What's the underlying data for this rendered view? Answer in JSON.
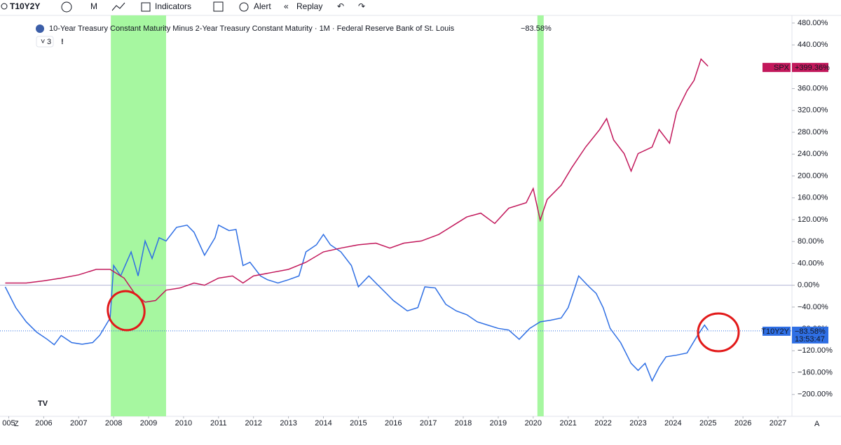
{
  "toolbar": {
    "symbol": "T10Y2Y",
    "interval": "M",
    "indicators": "Indicators",
    "alert": "Alert",
    "replay": "Replay"
  },
  "chart_data": {
    "type": "line",
    "title": "10-Year Treasury Constant Maturity Minus 2-Year Treasury Constant Maturity · 1M · Federal Reserve Bank of St. Louis",
    "title_value": "−83.58%",
    "indicator_count": "3",
    "xlim": [
      2004.75,
      2027.4
    ],
    "xticks": [
      {
        "value": 2005,
        "label": "005"
      },
      2006,
      2007,
      2008,
      2009,
      2010,
      2011,
      2012,
      2013,
      2014,
      2015,
      2016,
      2017,
      2018,
      2019,
      2020,
      2021,
      2022,
      2023,
      2024,
      2025,
      2026,
      2027
    ],
    "ylim": [
      -240,
      494
    ],
    "yticks": [
      {
        "value": 480,
        "label": "480.00%"
      },
      {
        "value": 440,
        "label": "440.00%"
      },
      {
        "value": 400,
        "label": "400.00%"
      },
      {
        "value": 360,
        "label": "360.00%"
      },
      {
        "value": 320,
        "label": "320.00%"
      },
      {
        "value": 280,
        "label": "280.00%"
      },
      {
        "value": 240,
        "label": "240.00%"
      },
      {
        "value": 200,
        "label": "200.00%"
      },
      {
        "value": 160,
        "label": "160.00%"
      },
      {
        "value": 120,
        "label": "120.00%"
      },
      {
        "value": 80,
        "label": "80.00%"
      },
      {
        "value": 40,
        "label": "40.00%"
      },
      {
        "value": 0,
        "label": "0.00%"
      },
      {
        "value": -40,
        "label": "−40.00%"
      },
      {
        "value": -80,
        "label": "−80.00%"
      },
      {
        "value": -120,
        "label": "−120.00%"
      },
      {
        "value": -160,
        "label": "−160.00%"
      },
      {
        "value": -200,
        "label": "−200.00%"
      }
    ],
    "shaded_ranges": [
      [
        2007.92,
        2009.5
      ],
      [
        2020.12,
        2020.3
      ]
    ],
    "shade_color": "#a6f7a0",
    "series": [
      {
        "name": "T10Y2Y",
        "color": "#2f6fe4",
        "last_value": -83.58,
        "value_label": "−83.58%",
        "countdown": "13:53:47",
        "x": [
          2004.9,
          2005.2,
          2005.5,
          2005.8,
          2006.1,
          2006.3,
          2006.5,
          2006.8,
          2007.1,
          2007.4,
          2007.6,
          2007.9,
          2008.0,
          2008.2,
          2008.5,
          2008.7,
          2008.9,
          2009.1,
          2009.3,
          2009.5,
          2009.8,
          2010.1,
          2010.3,
          2010.6,
          2010.9,
          2011.0,
          2011.3,
          2011.5,
          2011.7,
          2011.9,
          2012.2,
          2012.4,
          2012.7,
          2013.0,
          2013.3,
          2013.5,
          2013.8,
          2014.0,
          2014.2,
          2014.5,
          2014.8,
          2015.0,
          2015.3,
          2015.5,
          2015.8,
          2016.0,
          2016.4,
          2016.7,
          2016.9,
          2017.2,
          2017.5,
          2017.8,
          2018.1,
          2018.4,
          2018.7,
          2019.0,
          2019.3,
          2019.6,
          2019.9,
          2020.2,
          2020.5,
          2020.8,
          2021.0,
          2021.2,
          2021.3,
          2021.6,
          2021.8,
          2022.0,
          2022.2,
          2022.5,
          2022.8,
          2023.0,
          2023.2,
          2023.4,
          2023.6,
          2023.8,
          2024.1,
          2024.4,
          2024.7,
          2024.9,
          2025.0
        ],
        "values": [
          -3,
          -41,
          -67,
          -86,
          -99,
          -109,
          -92,
          -105,
          -108,
          -105,
          -92,
          -60,
          36,
          17,
          61,
          17,
          81,
          49,
          87,
          81,
          106,
          110,
          97,
          55,
          87,
          110,
          100,
          102,
          36,
          42,
          17,
          10,
          4,
          10,
          17,
          61,
          74,
          93,
          74,
          61,
          36,
          -3,
          17,
          4,
          -15,
          -28,
          -47,
          -41,
          -3,
          -5,
          -35,
          -47,
          -54,
          -67,
          -73,
          -79,
          -82,
          -99,
          -79,
          -67,
          -64,
          -60,
          -41,
          -3,
          17,
          -3,
          -15,
          -41,
          -79,
          -105,
          -143,
          -156,
          -143,
          -175,
          -150,
          -131,
          -128,
          -124,
          -92,
          -73,
          -82
        ]
      },
      {
        "name": "SPX",
        "color": "#c2185b",
        "last_value": 399.36,
        "value_label": "+399.36%",
        "x": [
          2004.9,
          2005.5,
          2006.0,
          2006.5,
          2007.0,
          2007.5,
          2007.9,
          2008.3,
          2008.6,
          2008.9,
          2009.2,
          2009.5,
          2009.9,
          2010.3,
          2010.6,
          2011.0,
          2011.4,
          2011.7,
          2012.0,
          2012.5,
          2013.0,
          2013.5,
          2014.0,
          2014.5,
          2015.0,
          2015.5,
          2015.9,
          2016.3,
          2016.8,
          2017.3,
          2017.8,
          2018.1,
          2018.5,
          2018.9,
          2019.3,
          2019.8,
          2020.0,
          2020.2,
          2020.4,
          2020.8,
          2021.1,
          2021.5,
          2021.9,
          2022.1,
          2022.3,
          2022.6,
          2022.8,
          2023.0,
          2023.4,
          2023.6,
          2023.9,
          2024.1,
          2024.4,
          2024.6,
          2024.8,
          2025.0
        ],
        "values": [
          4,
          4,
          8,
          13,
          19,
          29,
          29,
          13,
          -15,
          -31,
          -28,
          -9,
          -5,
          4,
          0,
          13,
          17,
          4,
          17,
          23,
          29,
          42,
          61,
          68,
          74,
          77,
          68,
          77,
          81,
          93,
          113,
          125,
          132,
          113,
          141,
          151,
          177,
          119,
          157,
          183,
          215,
          253,
          285,
          305,
          266,
          241,
          209,
          241,
          253,
          285,
          260,
          317,
          356,
          375,
          414,
          401
        ]
      }
    ]
  }
}
